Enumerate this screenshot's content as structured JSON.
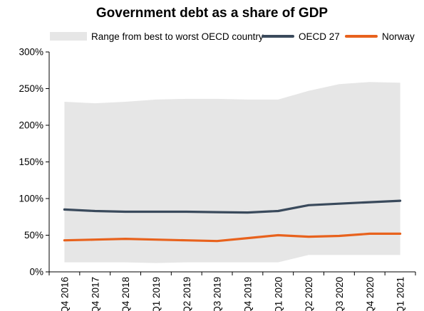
{
  "chart_data": {
    "type": "line",
    "title": "Government debt as a share of GDP",
    "categories": [
      "Q4 2016",
      "Q4 2017",
      "Q4 2018",
      "Q1 2019",
      "Q2 2019",
      "Q3 2019",
      "Q4 2019",
      "Q1 2020",
      "Q2 2020",
      "Q3 2020",
      "Q4 2020",
      "Q1 2021"
    ],
    "band": {
      "name": "Range from best to worst OECD country",
      "color": "#e6e6e6",
      "lower": [
        13,
        13,
        13,
        12,
        13,
        13,
        13,
        13,
        23,
        23,
        23,
        23
      ],
      "upper": [
        232,
        230,
        232,
        235,
        236,
        236,
        235,
        235,
        247,
        256,
        259,
        258
      ]
    },
    "series": [
      {
        "name": "OECD 27",
        "color": "#3a4a5c",
        "values": [
          85,
          83,
          82,
          82,
          82,
          81.5,
          81,
          83,
          91,
          93,
          95,
          97
        ]
      },
      {
        "name": "Norway",
        "color": "#e8621d",
        "values": [
          43,
          44,
          45,
          44,
          43,
          42,
          46,
          50,
          48,
          49,
          52,
          52
        ]
      }
    ],
    "ylim": [
      0,
      300
    ],
    "yticks": [
      0,
      50,
      100,
      150,
      200,
      250,
      300
    ],
    "ytick_labels": [
      "0%",
      "50%",
      "100%",
      "150%",
      "200%",
      "250%",
      "300%"
    ],
    "legend_position": "top",
    "grid": false
  }
}
